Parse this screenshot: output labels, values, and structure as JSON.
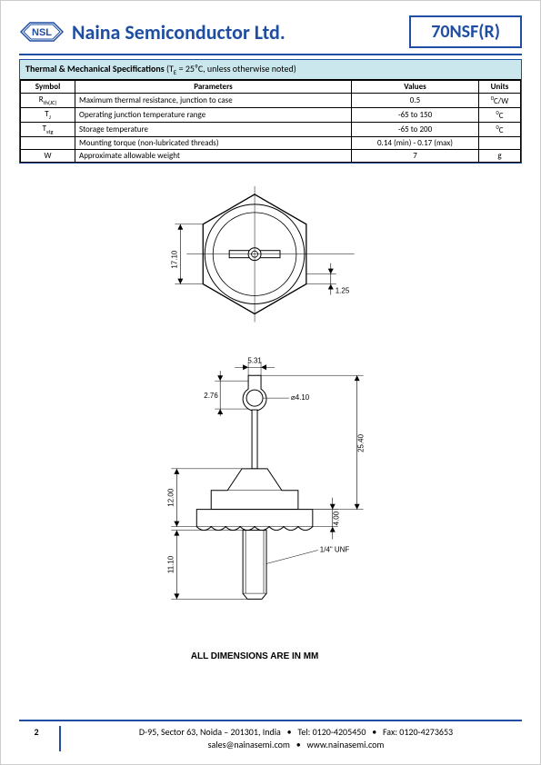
{
  "header": {
    "logo_text": "NSL",
    "company": "Naina Semiconductor Ltd.",
    "part_number": "70NSF(R)"
  },
  "colors": {
    "brand": "#1f4ea3",
    "title_bg": "#c9e7ed",
    "line": "#000000",
    "fill": "#ffffff"
  },
  "spec_table": {
    "title_bold": "Thermal & Mechanical Specifications",
    "title_cond": " (T",
    "title_sub": "E",
    "title_rest": " = 25⁰C, unless otherwise noted)",
    "headers": {
      "symbol": "Symbol",
      "parameters": "Parameters",
      "values": "Values",
      "units": "Units"
    },
    "rows": [
      {
        "symbol_html": "R<sub>th(JC)</sub>",
        "param": "Maximum thermal resistance, junction to case",
        "value": "0.5",
        "unit_html": "<sup>0</sup>C/W"
      },
      {
        "symbol_html": "T<sub>J</sub>",
        "param": "Operating junction temperature range",
        "value": "-65 to 150",
        "unit_html": "<sup>0</sup>C"
      },
      {
        "symbol_html": "T<sub>stg</sub>",
        "param": "Storage temperature",
        "value": "-65 to 200",
        "unit_html": "<sup>0</sup>C"
      },
      {
        "symbol_html": "",
        "param": "Mounting torque (non-lubricated threads)",
        "value": "0.14 (min) - 0.17 (max)",
        "unit_html": ""
      },
      {
        "symbol_html": "W",
        "param": "Approximate allowable weight",
        "value": "7",
        "unit_html": "g"
      }
    ]
  },
  "drawings": {
    "top_view": {
      "dim_height": "17.10",
      "dim_flat": "1.25"
    },
    "side_view": {
      "dim_lug_w": "5.31",
      "dim_lug_h": "2.76",
      "dim_hole": "⌀4.10",
      "dim_pin": "25.40",
      "dim_body": "12.00",
      "dim_flange": "4.00",
      "dim_thread": "11.10",
      "thread_note": "1/4\" UNF"
    },
    "caption": "ALL DIMENSIONS ARE IN MM"
  },
  "footer": {
    "page": "2",
    "line1_a": "D-95, Sector 63, Noida – 201301, India",
    "line1_b": "Tel: 0120-4205450",
    "line1_c": "Fax: 0120-4273653",
    "line2_a": "sales@nainasemi.com",
    "line2_b": "www.nainasemi.com",
    "bullet": "•"
  }
}
